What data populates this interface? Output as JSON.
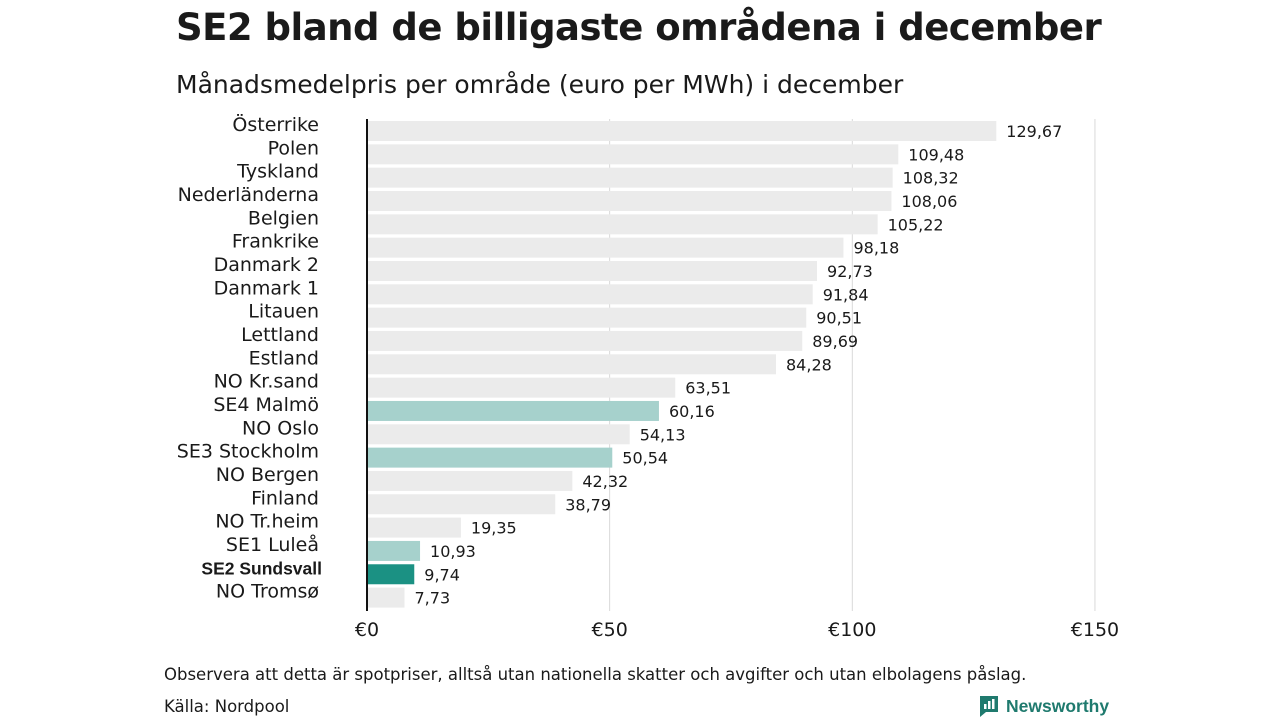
{
  "title": "SE2 bland de billigaste områdena i december",
  "subtitle": "Månadsmedelpris per område (euro per MWh) i december",
  "note": "Observera att detta är spotpriser, alltså utan nationella skatter och avgifter och utan elbolagens påslag.",
  "source": "Källa: Nordpool",
  "logo": {
    "text": "Newsworthy",
    "icon": "newsworthy-logo-icon"
  },
  "colors": {
    "default": "#ebebeb",
    "se_other": "#a6d1cc",
    "se_highlight": "#1b9183",
    "grid": "#d9d9d9",
    "axis": "#111111",
    "brand": "#1f7a6e"
  },
  "chart_data": {
    "type": "bar",
    "orientation": "horizontal",
    "xlim": [
      0,
      150
    ],
    "xticks": [
      0,
      50,
      100,
      150
    ],
    "xtick_labels": [
      "€0",
      "€50",
      "€100",
      "€150"
    ],
    "grid": true,
    "categories": [
      "Österrike",
      "Polen",
      "Tyskland",
      "Nederländerna",
      "Belgien",
      "Frankrike",
      "Danmark  2",
      "Danmark  1",
      "Litauen",
      "Lettland",
      "Estland",
      "NO Kr.sand",
      "SE4  Malmö",
      "NO Oslo",
      "SE3  Stockholm",
      "NO Bergen",
      "Finland",
      "NO Tr.heim",
      "SE1  Luleå",
      "SE2 Sundsvall",
      "NO Tromsø"
    ],
    "values": [
      129.67,
      109.48,
      108.32,
      108.06,
      105.22,
      98.18,
      92.73,
      91.84,
      90.51,
      89.69,
      84.28,
      63.51,
      60.16,
      54.13,
      50.54,
      42.32,
      38.79,
      19.35,
      10.93,
      9.74,
      7.73
    ],
    "value_labels": [
      "129,67",
      "109,48",
      "108,32",
      "108,06",
      "105,22",
      "98,18",
      "92,73",
      "91,84",
      "90,51",
      "89,69",
      "84,28",
      "63,51",
      "60,16",
      "54,13",
      "50,54",
      "42,32",
      "38,79",
      "19,35",
      "10,93",
      "9,74",
      "7,73"
    ],
    "highlight": [
      "default",
      "default",
      "default",
      "default",
      "default",
      "default",
      "default",
      "default",
      "default",
      "default",
      "default",
      "default",
      "se_other",
      "default",
      "se_other",
      "default",
      "default",
      "default",
      "se_other",
      "se_highlight",
      "default"
    ]
  }
}
